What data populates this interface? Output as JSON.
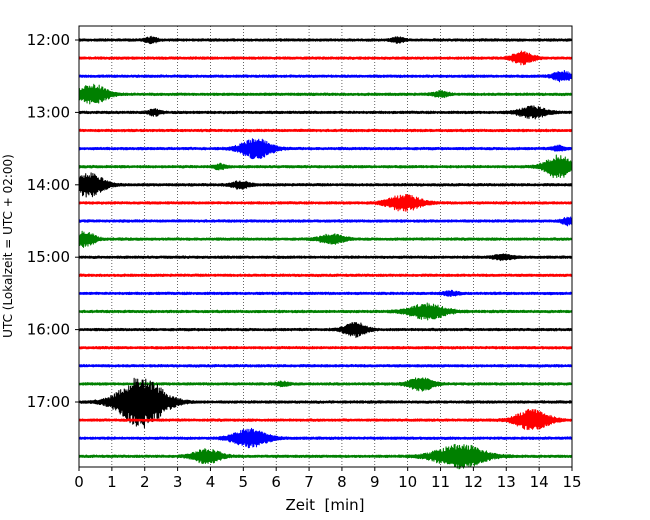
{
  "chart_data": {
    "type": "line",
    "title": "",
    "xlabel": "Zeit  [min]",
    "ylabel": "UTC (Lokalzeit = UTC + 02:00)",
    "xlim": [
      0,
      15
    ],
    "x_ticks": [
      0,
      1,
      2,
      3,
      4,
      5,
      6,
      7,
      8,
      9,
      10,
      11,
      12,
      13,
      14,
      15
    ],
    "y_tick_labels": [
      "12:00",
      "13:00",
      "14:00",
      "15:00",
      "16:00",
      "17:00"
    ],
    "grid": "vertical dotted lines at every minute",
    "minutes_per_trace": 15,
    "trace_colors": [
      "#000000",
      "#ff0000",
      "#0000ff",
      "#008000"
    ],
    "trace_count": 24,
    "traces": [
      {
        "start": "12:00",
        "color": "#000000",
        "events": [
          {
            "t": 2.2,
            "amp": 0.55,
            "w": 0.2
          },
          {
            "t": 9.7,
            "amp": 0.5,
            "w": 0.2
          }
        ]
      },
      {
        "start": "12:15",
        "color": "#ff0000",
        "events": [
          {
            "t": 13.5,
            "amp": 1.2,
            "w": 0.35
          }
        ]
      },
      {
        "start": "12:30",
        "color": "#0000ff",
        "events": [
          {
            "t": 14.7,
            "amp": 1.0,
            "w": 0.3
          }
        ]
      },
      {
        "start": "12:45",
        "color": "#008000",
        "events": [
          {
            "t": 0.4,
            "amp": 1.9,
            "w": 0.5
          },
          {
            "t": 11.0,
            "amp": 0.5,
            "w": 0.25
          }
        ]
      },
      {
        "start": "13:00",
        "color": "#000000",
        "events": [
          {
            "t": 2.3,
            "amp": 0.6,
            "w": 0.2
          },
          {
            "t": 13.8,
            "amp": 1.1,
            "w": 0.45
          }
        ]
      },
      {
        "start": "13:15",
        "color": "#ff0000",
        "events": []
      },
      {
        "start": "13:30",
        "color": "#0000ff",
        "events": [
          {
            "t": 5.4,
            "amp": 1.9,
            "w": 0.5
          },
          {
            "t": 14.6,
            "amp": 0.5,
            "w": 0.2
          }
        ]
      },
      {
        "start": "13:45",
        "color": "#008000",
        "events": [
          {
            "t": 14.6,
            "amp": 2.2,
            "w": 0.45
          },
          {
            "t": 4.3,
            "amp": 0.5,
            "w": 0.2
          }
        ]
      },
      {
        "start": "14:00",
        "color": "#000000",
        "events": [
          {
            "t": 0.3,
            "amp": 2.3,
            "w": 0.5
          },
          {
            "t": 4.9,
            "amp": 0.7,
            "w": 0.3
          }
        ]
      },
      {
        "start": "14:15",
        "color": "#ff0000",
        "events": [
          {
            "t": 9.9,
            "amp": 1.5,
            "w": 0.55
          }
        ]
      },
      {
        "start": "14:30",
        "color": "#0000ff",
        "events": [
          {
            "t": 14.9,
            "amp": 0.8,
            "w": 0.2
          }
        ]
      },
      {
        "start": "14:45",
        "color": "#008000",
        "events": [
          {
            "t": 0.2,
            "amp": 1.5,
            "w": 0.3
          },
          {
            "t": 7.7,
            "amp": 0.9,
            "w": 0.4
          }
        ]
      },
      {
        "start": "15:00",
        "color": "#000000",
        "events": [
          {
            "t": 12.9,
            "amp": 0.5,
            "w": 0.3
          }
        ]
      },
      {
        "start": "15:15",
        "color": "#ff0000",
        "events": []
      },
      {
        "start": "15:30",
        "color": "#0000ff",
        "events": [
          {
            "t": 11.3,
            "amp": 0.4,
            "w": 0.25
          }
        ]
      },
      {
        "start": "15:45",
        "color": "#008000",
        "events": [
          {
            "t": 10.6,
            "amp": 1.5,
            "w": 0.6
          }
        ]
      },
      {
        "start": "16:00",
        "color": "#000000",
        "events": [
          {
            "t": 8.4,
            "amp": 1.4,
            "w": 0.35
          }
        ]
      },
      {
        "start": "16:15",
        "color": "#ff0000",
        "events": []
      },
      {
        "start": "16:30",
        "color": "#0000ff",
        "events": []
      },
      {
        "start": "16:45",
        "color": "#008000",
        "events": [
          {
            "t": 10.4,
            "amp": 1.3,
            "w": 0.4
          },
          {
            "t": 6.2,
            "amp": 0.4,
            "w": 0.2
          }
        ]
      },
      {
        "start": "17:00",
        "color": "#000000",
        "events": [
          {
            "t": 1.9,
            "amp": 5.0,
            "w": 0.75
          }
        ]
      },
      {
        "start": "17:15",
        "color": "#ff0000",
        "events": [
          {
            "t": 13.8,
            "amp": 2.0,
            "w": 0.55
          }
        ]
      },
      {
        "start": "17:30",
        "color": "#0000ff",
        "events": [
          {
            "t": 5.2,
            "amp": 1.8,
            "w": 0.55
          }
        ]
      },
      {
        "start": "17:45",
        "color": "#008000",
        "events": [
          {
            "t": 3.9,
            "amp": 1.4,
            "w": 0.45
          },
          {
            "t": 11.6,
            "amp": 2.3,
            "w": 0.8
          }
        ]
      }
    ]
  }
}
